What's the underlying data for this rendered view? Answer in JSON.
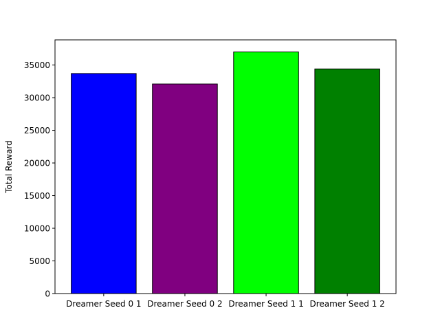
{
  "chart_data": {
    "type": "bar",
    "title": "",
    "xlabel": "",
    "ylabel": "Total Reward",
    "categories": [
      "Dreamer Seed 0 1",
      "Dreamer Seed 0 2",
      "Dreamer Seed 1 1",
      "Dreamer Seed 1 2"
    ],
    "values": [
      33700,
      32100,
      37000,
      34400
    ],
    "colors": [
      "#0000ff",
      "#800080",
      "#00ff00",
      "#008000"
    ],
    "edge_color": "#000000",
    "ylim": [
      0,
      38850
    ],
    "yticks": [
      0,
      5000,
      10000,
      15000,
      20000,
      25000,
      30000,
      35000
    ],
    "grid": false,
    "legend": "none"
  }
}
